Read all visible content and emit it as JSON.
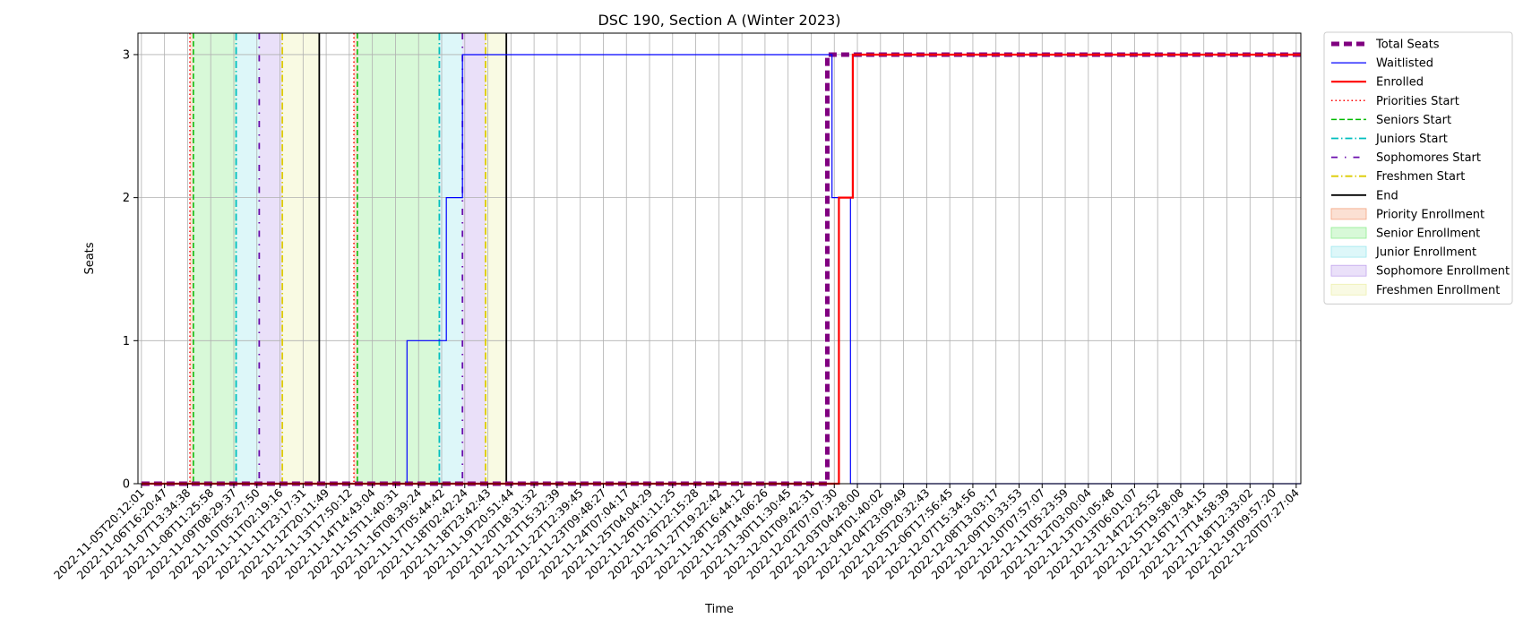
{
  "chart_data": {
    "type": "line",
    "title": "DSC 190, Section A (Winter 2023)",
    "xlabel": "Time",
    "ylabel": "Seats",
    "ylim": [
      0,
      3.15
    ],
    "yticks": [
      0,
      1,
      2,
      3
    ],
    "grid": true,
    "legend_position": "outside-right",
    "x_tick_labels": [
      "2022-11-05T20:12:01",
      "2022-11-06T16:20:47",
      "2022-11-07T13:34:38",
      "2022-11-08T11:25:58",
      "2022-11-09T08:29:37",
      "2022-11-10T05:27:50",
      "2022-11-11T02:19:16",
      "2022-11-11T23:17:31",
      "2022-11-12T20:11:49",
      "2022-11-13T17:50:12",
      "2022-11-14T14:43:04",
      "2022-11-15T11:40:31",
      "2022-11-16T08:39:24",
      "2022-11-17T05:44:42",
      "2022-11-18T02:42:24",
      "2022-11-18T23:42:43",
      "2022-11-19T20:51:44",
      "2022-11-20T18:31:32",
      "2022-11-21T15:32:39",
      "2022-11-22T12:39:45",
      "2022-11-23T09:48:27",
      "2022-11-24T07:04:17",
      "2022-11-25T04:04:29",
      "2022-11-26T01:11:25",
      "2022-11-26T22:15:28",
      "2022-11-27T19:22:42",
      "2022-11-28T16:44:12",
      "2022-11-29T14:06:26",
      "2022-11-30T11:30:45",
      "2022-12-01T09:42:31",
      "2022-12-02T07:07:30",
      "2022-12-03T04:28:00",
      "2022-12-04T01:40:02",
      "2022-12-04T23:09:49",
      "2022-12-05T20:32:43",
      "2022-12-06T17:56:45",
      "2022-12-07T15:34:56",
      "2022-12-08T13:03:17",
      "2022-12-09T10:33:53",
      "2022-12-10T07:57:07",
      "2022-12-11T05:23:59",
      "2022-12-12T03:00:04",
      "2022-12-13T01:05:48",
      "2022-12-13T06:01:07",
      "2022-12-14T22:25:52",
      "2022-12-15T19:58:08",
      "2022-12-16T17:34:15",
      "2022-12-17T14:58:39",
      "2022-12-18T12:33:02",
      "2022-12-19T09:57:20",
      "2022-12-20T07:27:04"
    ],
    "series": [
      {
        "name": "Total Seats",
        "color": "#800080",
        "style": "dashed-thick",
        "points": [
          [
            0,
            0
          ],
          [
            29.7,
            0
          ],
          [
            29.7,
            3
          ],
          [
            50.2,
            3
          ]
        ]
      },
      {
        "name": "Waitlisted",
        "color": "#0000ff",
        "style": "solid-thin",
        "points": [
          [
            0,
            0
          ],
          [
            11.5,
            0
          ],
          [
            11.5,
            1
          ],
          [
            13.2,
            1
          ],
          [
            13.2,
            2
          ],
          [
            13.9,
            2
          ],
          [
            13.9,
            3
          ],
          [
            29.9,
            3
          ],
          [
            29.9,
            2
          ],
          [
            30.7,
            2
          ],
          [
            30.7,
            0
          ],
          [
            50.2,
            0
          ]
        ]
      },
      {
        "name": "Enrolled",
        "color": "#ff0000",
        "style": "solid-thick",
        "points": [
          [
            0,
            0
          ],
          [
            30.2,
            0
          ],
          [
            30.2,
            2
          ],
          [
            30.8,
            2
          ],
          [
            30.8,
            3
          ],
          [
            50.2,
            3
          ]
        ]
      }
    ],
    "vertical_markers": [
      {
        "name": "Priorities Start",
        "color": "#ff0000",
        "style": "dotted",
        "x": [
          2.1,
          9.2
        ]
      },
      {
        "name": "Seniors Start",
        "color": "#00bb00",
        "style": "dashed",
        "x": [
          2.25,
          9.35
        ]
      },
      {
        "name": "Juniors Start",
        "color": "#00bfbf",
        "style": "dashdot",
        "x": [
          4.1,
          12.9
        ]
      },
      {
        "name": "Sophomores Start",
        "color": "#6a0dad",
        "style": "dashdot-sparse",
        "x": [
          5.1,
          13.9
        ]
      },
      {
        "name": "Freshmen Start",
        "color": "#ddcc00",
        "style": "dashdot",
        "x": [
          6.1,
          14.9
        ]
      },
      {
        "name": "End",
        "color": "#000000",
        "style": "solid",
        "x": [
          7.7,
          15.8
        ]
      }
    ],
    "shaded_regions": [
      {
        "name": "Priority Enrollment",
        "color": "#f4a582",
        "ranges": [
          [
            2.1,
            2.25
          ],
          [
            9.2,
            9.35
          ]
        ]
      },
      {
        "name": "Senior Enrollment",
        "color": "#90ee90",
        "ranges": [
          [
            2.25,
            4.1
          ],
          [
            9.35,
            12.9
          ]
        ]
      },
      {
        "name": "Junior Enrollment",
        "color": "#9fe8ef",
        "ranges": [
          [
            4.1,
            5.1
          ],
          [
            12.9,
            13.9
          ]
        ]
      },
      {
        "name": "Sophomore Enrollment",
        "color": "#c3a6ee",
        "ranges": [
          [
            5.1,
            6.1
          ],
          [
            13.9,
            14.9
          ]
        ]
      },
      {
        "name": "Freshmen Enrollment",
        "color": "#eef0b0",
        "ranges": [
          [
            6.1,
            7.7
          ],
          [
            14.9,
            15.8
          ]
        ]
      }
    ],
    "legend": [
      {
        "label": "Total Seats",
        "kind": "line",
        "color": "#800080",
        "style": "dashed-thick"
      },
      {
        "label": "Waitlisted",
        "kind": "line",
        "color": "#0000ff",
        "style": "solid-thin"
      },
      {
        "label": "Enrolled",
        "kind": "line",
        "color": "#ff0000",
        "style": "solid-thick"
      },
      {
        "label": "Priorities Start",
        "kind": "line",
        "color": "#ff0000",
        "style": "dotted"
      },
      {
        "label": "Seniors Start",
        "kind": "line",
        "color": "#00bb00",
        "style": "dashed"
      },
      {
        "label": "Juniors Start",
        "kind": "line",
        "color": "#00bfbf",
        "style": "dashdot"
      },
      {
        "label": "Sophomores Start",
        "kind": "line",
        "color": "#6a0dad",
        "style": "dashdot-sparse"
      },
      {
        "label": "Freshmen Start",
        "kind": "line",
        "color": "#ddcc00",
        "style": "dashdot"
      },
      {
        "label": "End",
        "kind": "line",
        "color": "#000000",
        "style": "solid"
      },
      {
        "label": "Priority Enrollment",
        "kind": "patch",
        "color": "#f4a582"
      },
      {
        "label": "Senior Enrollment",
        "kind": "patch",
        "color": "#90ee90"
      },
      {
        "label": "Junior Enrollment",
        "kind": "patch",
        "color": "#9fe8ef"
      },
      {
        "label": "Sophomore Enrollment",
        "kind": "patch",
        "color": "#c3a6ee"
      },
      {
        "label": "Freshmen Enrollment",
        "kind": "patch",
        "color": "#eef0b0"
      }
    ]
  }
}
